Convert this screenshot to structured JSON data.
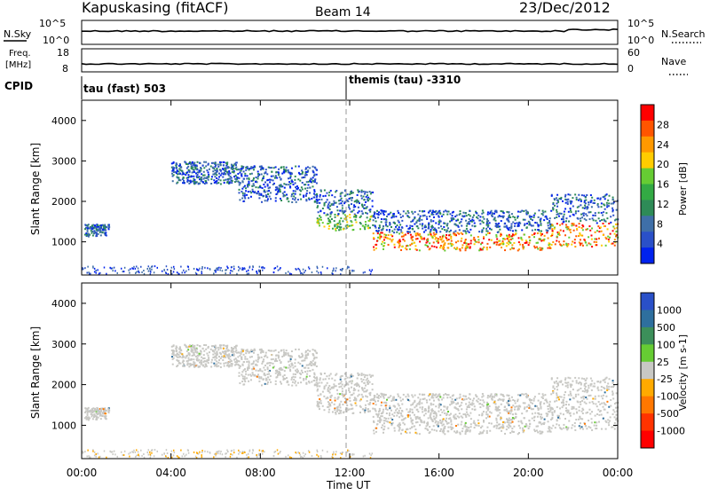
{
  "header": {
    "station": "Kapuskasing (fitACF)",
    "beam": "Beam 14",
    "date": "23/Dec/2012"
  },
  "top_panels": {
    "nsky": {
      "label": "N.Sky",
      "tick_hi": "10^5",
      "tick_lo": "10^0",
      "right_label": "N.Search",
      "right_tick_hi": "10^5",
      "right_tick_lo": "10^0"
    },
    "freq": {
      "label_line1": "Freq.",
      "label_line2": "[MHz]",
      "tick_hi": "18",
      "tick_lo": "8",
      "right_label": "Nave",
      "right_tick_hi": "60",
      "right_tick_lo": "0"
    },
    "cpid": {
      "label": "CPID",
      "left_mode": "tau (fast) 503",
      "right_mode": "themis (tau) -3310"
    }
  },
  "axes": {
    "ylabel": "Slant Range [km]",
    "xlabel": "Time UT",
    "x_ticks": [
      "00:00",
      "04:00",
      "08:00",
      "12:00",
      "16:00",
      "20:00",
      "00:00"
    ],
    "y_ticks": [
      "1000",
      "2000",
      "3000",
      "4000"
    ]
  },
  "power_colorbar": {
    "label": "Power [dB]",
    "ticks": [
      "28",
      "24",
      "20",
      "16",
      "12",
      "8",
      "4"
    ],
    "colors": [
      "#ff0000",
      "#ff5500",
      "#ff9900",
      "#ffcc00",
      "#66cc33",
      "#33aa44",
      "#2e8b57",
      "#3f6fa8",
      "#2a50c8",
      "#0022ee"
    ]
  },
  "velocity_colorbar": {
    "label": "Velocity [m s-1]",
    "ticks": [
      "1000",
      "500",
      "100",
      "25",
      "-25",
      "-100",
      "-500",
      "-1000"
    ],
    "colors": [
      "#2a50c8",
      "#2e6f9e",
      "#3c8f5a",
      "#66cc33",
      "#c8c8c4",
      "#ffaa00",
      "#ff7700",
      "#ff3300",
      "#ff0000"
    ]
  },
  "chart_data": {
    "type": "heatmap",
    "title": "Kapuskasing (fitACF) Beam 14 23/Dec/2012",
    "xlabel": "Time UT",
    "ylabel": "Slant Range [km]",
    "xlim_hours": [
      0,
      24
    ],
    "ylim_km": [
      180,
      4500
    ],
    "backscatter_bands": [
      {
        "t_start": 0.1,
        "t_end": 1.2,
        "r_low": 1150,
        "r_high": 1450
      },
      {
        "t_start": 4.0,
        "t_end": 7.0,
        "r_low": 2450,
        "r_high": 3000
      },
      {
        "t_start": 7.0,
        "t_end": 10.5,
        "r_low": 2000,
        "r_high": 2900
      },
      {
        "t_start": 10.5,
        "t_end": 13.0,
        "r_low": 1300,
        "r_high": 2300
      },
      {
        "t_start": 13.0,
        "t_end": 21.0,
        "r_low": 800,
        "r_high": 1800
      },
      {
        "t_start": 21.0,
        "t_end": 24.0,
        "r_low": 900,
        "r_high": 2200
      }
    ]
  }
}
